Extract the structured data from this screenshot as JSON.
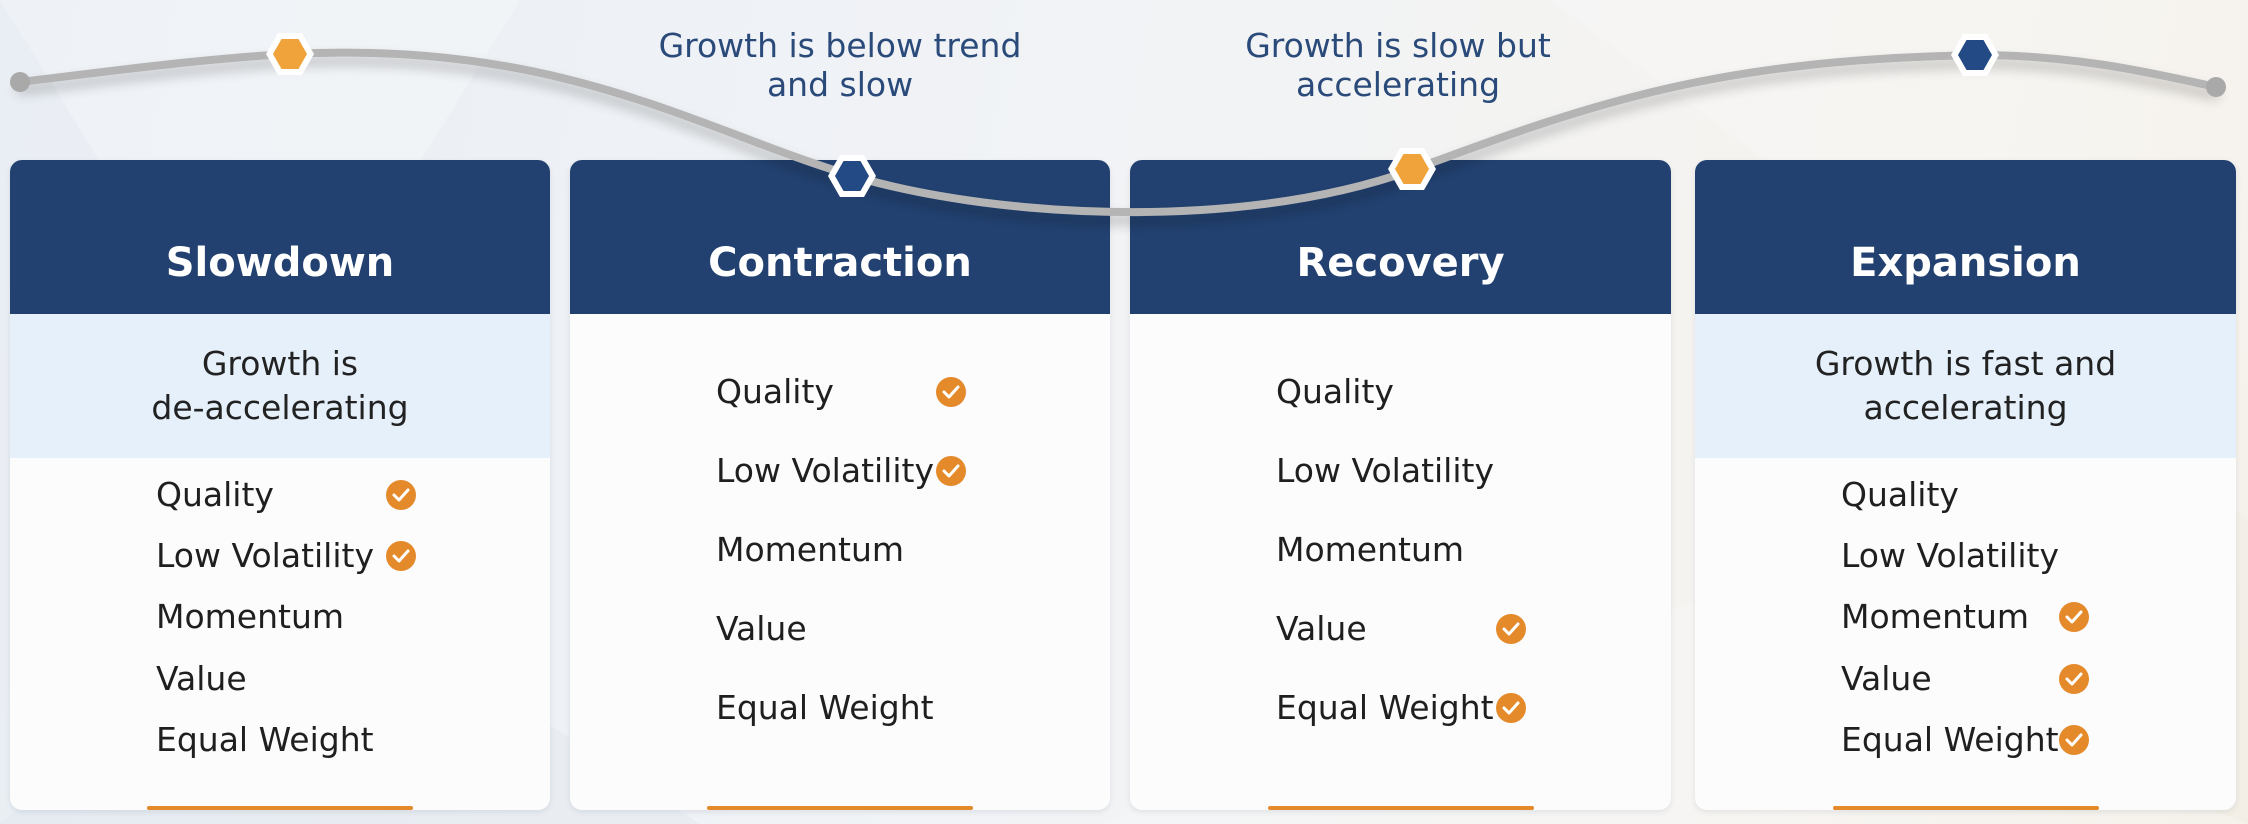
{
  "captions": {
    "contraction": "Growth is below trend\nand slow",
    "recovery": "Growth is slow but\naccelerating"
  },
  "colors": {
    "navy": "#224170",
    "orange": "#e48a2b",
    "light_blue": "#e5f0fa",
    "curve": "#b4b4b4",
    "caption_text": "#2a4a7a"
  },
  "icons": {
    "check": "check-circle-icon",
    "marker": "hexagon-icon"
  },
  "cards": [
    {
      "id": "slowdown",
      "title": "Slowdown",
      "description": "Growth is\nde-accelerating",
      "marker_color": "orange",
      "factors": [
        {
          "name": "Quality",
          "checked": true
        },
        {
          "name": "Low Volatility",
          "checked": true
        },
        {
          "name": "Momentum",
          "checked": false
        },
        {
          "name": "Value",
          "checked": false
        },
        {
          "name": "Equal Weight",
          "checked": false
        }
      ]
    },
    {
      "id": "contraction",
      "title": "Contraction",
      "description": "",
      "marker_color": "navy",
      "factors": [
        {
          "name": "Quality",
          "checked": true
        },
        {
          "name": "Low Volatility",
          "checked": true
        },
        {
          "name": "Momentum",
          "checked": false
        },
        {
          "name": "Value",
          "checked": false
        },
        {
          "name": "Equal Weight",
          "checked": false
        }
      ]
    },
    {
      "id": "recovery",
      "title": "Recovery",
      "description": "",
      "marker_color": "orange",
      "factors": [
        {
          "name": "Quality",
          "checked": false
        },
        {
          "name": "Low Volatility",
          "checked": false
        },
        {
          "name": "Momentum",
          "checked": false
        },
        {
          "name": "Value",
          "checked": true
        },
        {
          "name": "Equal Weight",
          "checked": true
        }
      ]
    },
    {
      "id": "expansion",
      "title": "Expansion",
      "description": "Growth is fast and\naccelerating",
      "marker_color": "navy",
      "factors": [
        {
          "name": "Quality",
          "checked": false
        },
        {
          "name": "Low Volatility",
          "checked": false
        },
        {
          "name": "Momentum",
          "checked": true
        },
        {
          "name": "Value",
          "checked": true
        },
        {
          "name": "Equal Weight",
          "checked": true
        }
      ]
    }
  ]
}
